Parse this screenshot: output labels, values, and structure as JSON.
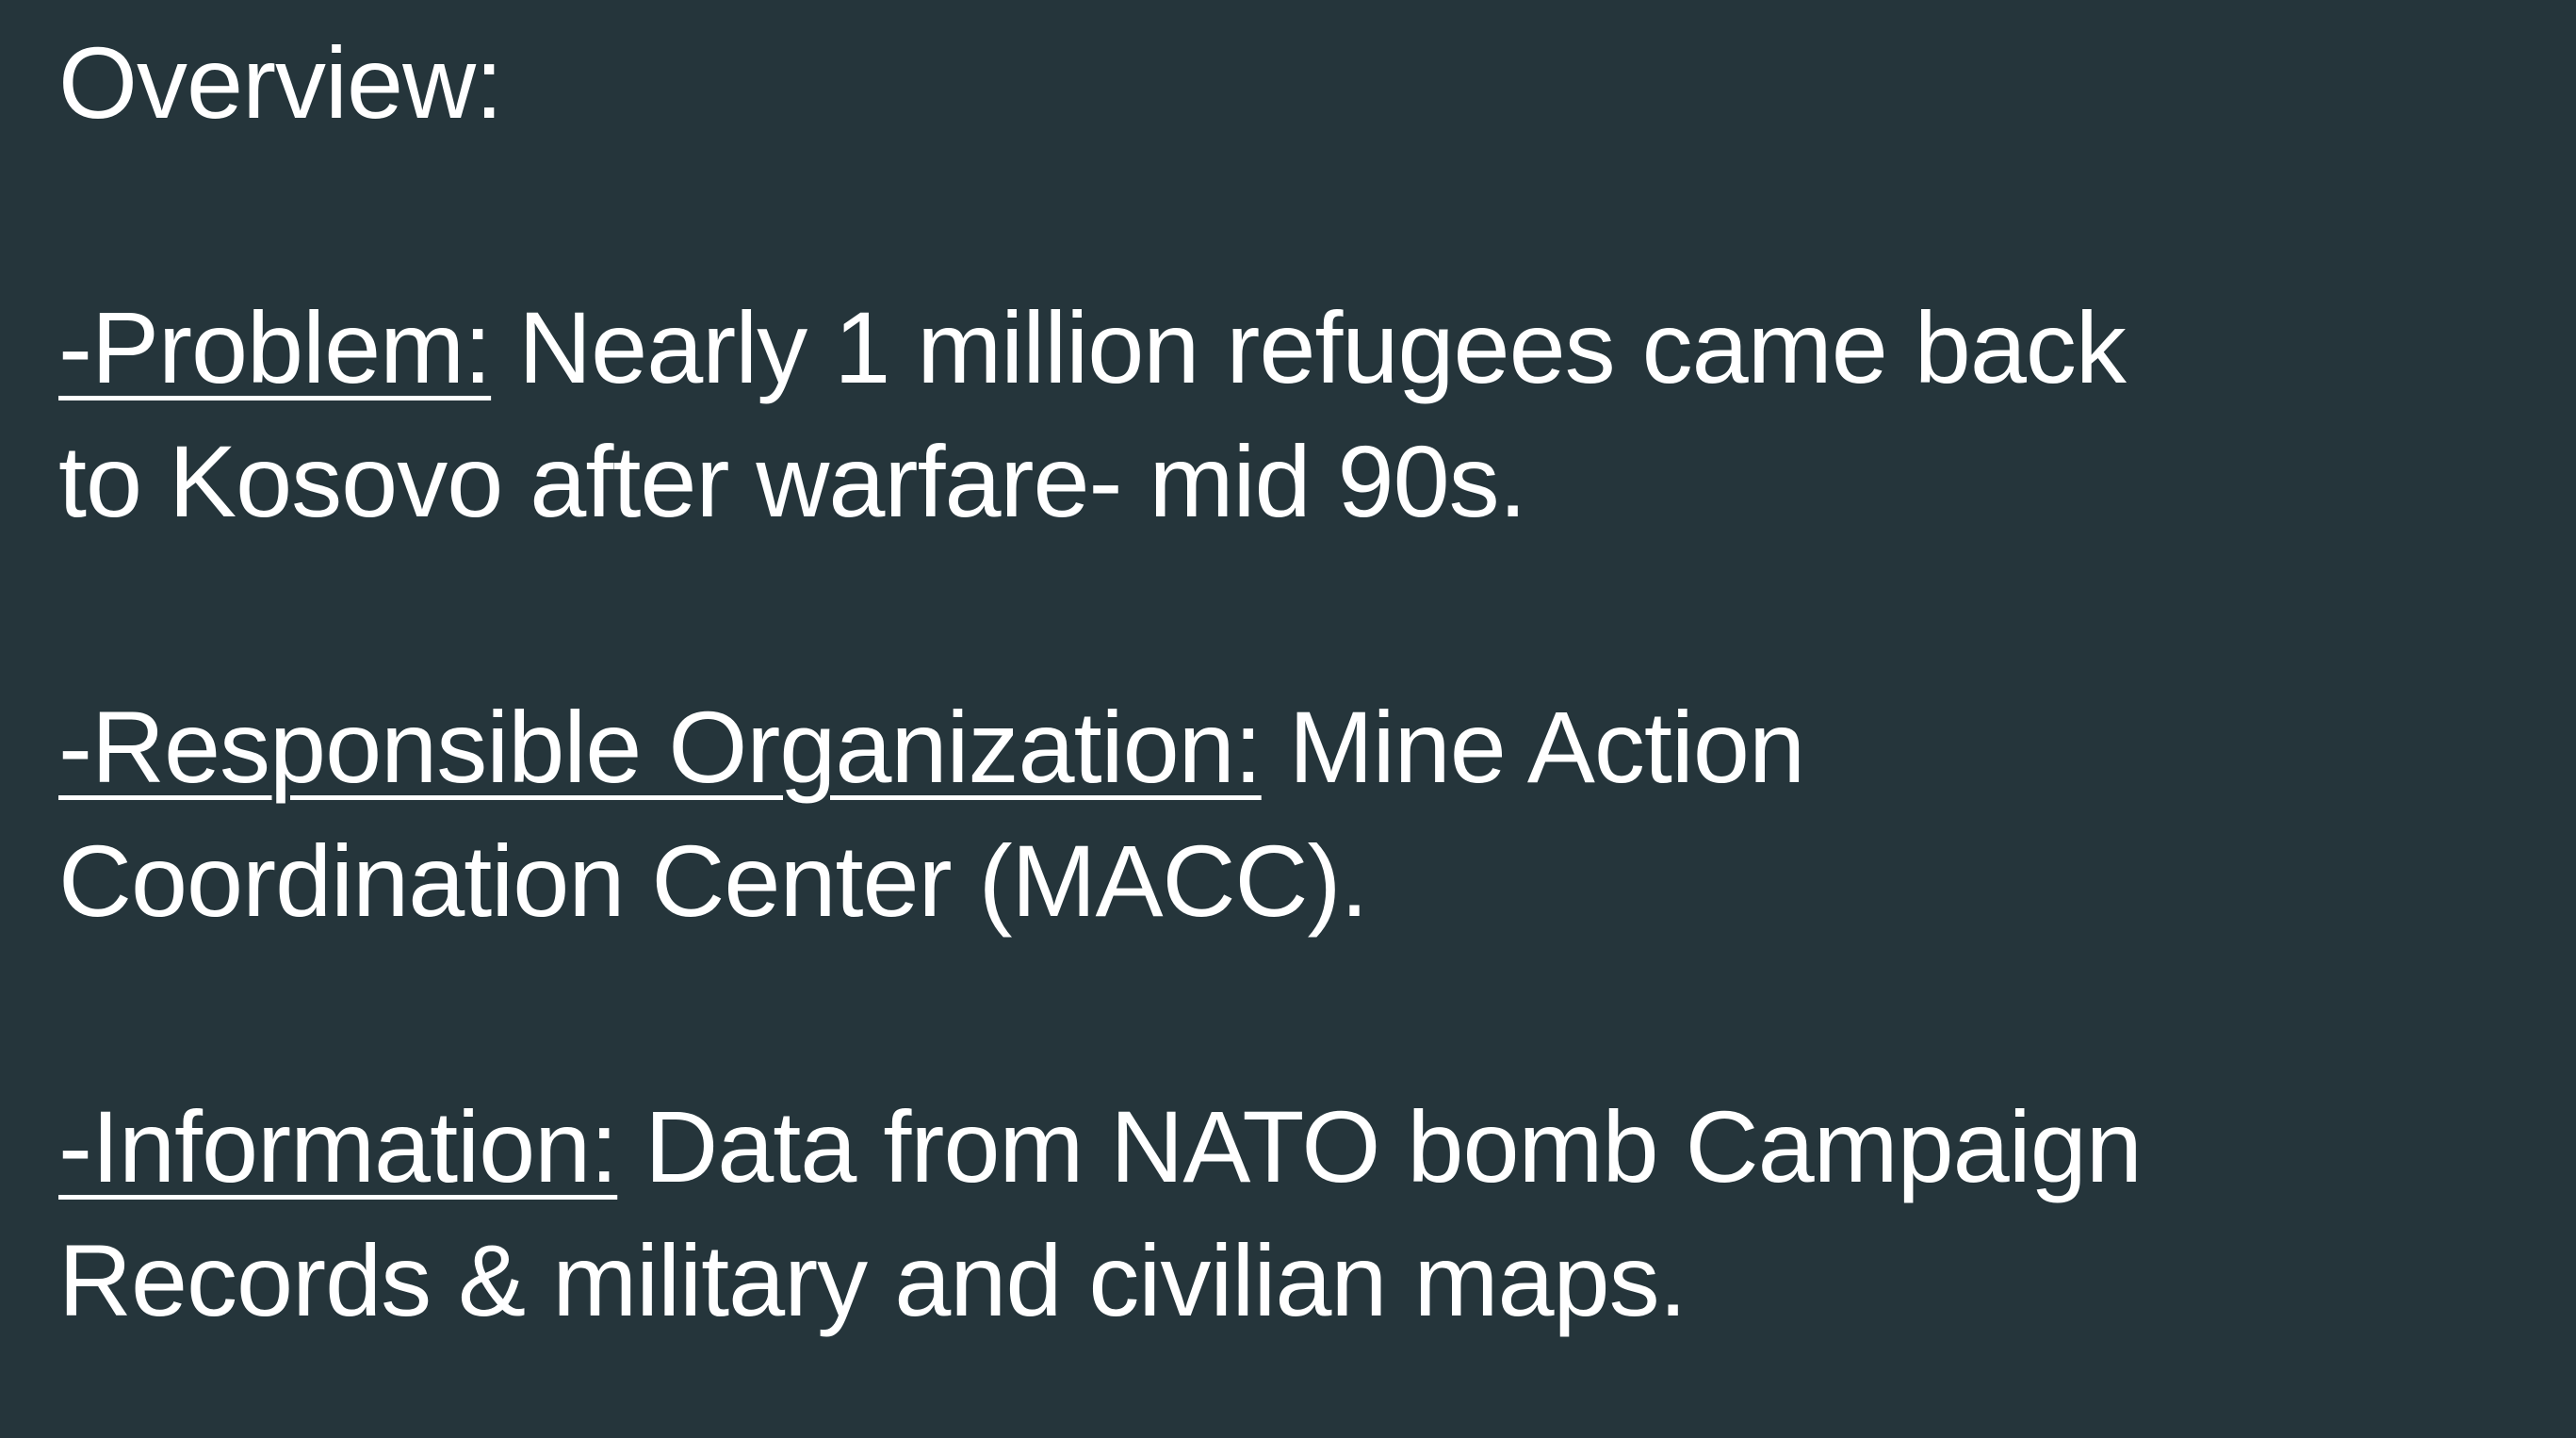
{
  "slide": {
    "heading": "Overview:",
    "items": [
      {
        "label": "-Problem:",
        "line1": " Nearly 1 million refugees came back",
        "line2": "to Kosovo after warfare- mid 90s."
      },
      {
        "label": "-Responsible Organization:",
        "line1": " Mine Action",
        "line2": "Coordination Center (MACC)."
      },
      {
        "label": "-Information:",
        "line1": " Data from NATO bomb Campaign",
        "line2": "Records & military and civilian maps."
      }
    ],
    "colors": {
      "background": "#25353b",
      "text": "#ffffff"
    }
  }
}
